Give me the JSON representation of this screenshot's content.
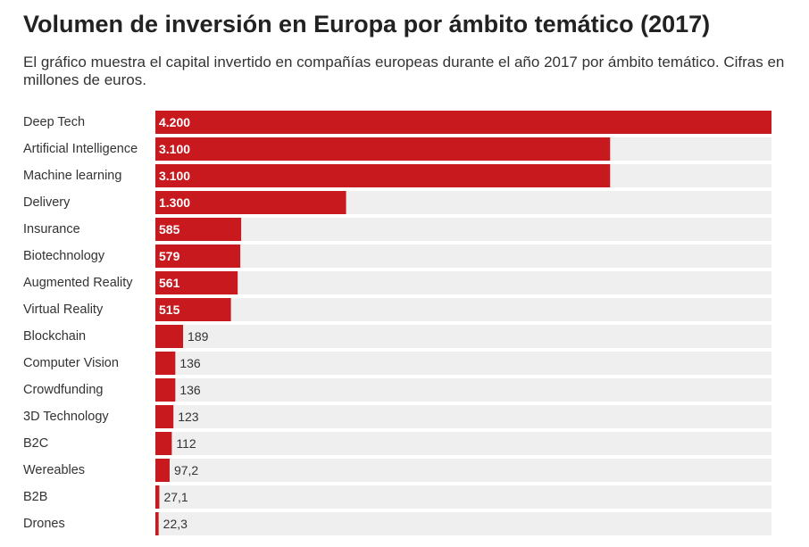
{
  "chart_data": {
    "type": "bar",
    "orientation": "horizontal",
    "title": "Volumen de inversión en Europa por ámbito temático (2017)",
    "subtitle": "El gráfico muestra el capital invertido en compañías europeas durante el año 2017 por ámbito temático. Cifras en millones de euros.",
    "xlim": [
      0,
      4200
    ],
    "bar_color": "#c8191e",
    "track_color": "#efefef",
    "categories": [
      "Deep Tech",
      "Artificial Intelligence",
      "Machine learning",
      "Delivery",
      "Insurance",
      "Biotechnology",
      "Augmented Reality",
      "Virtual Reality",
      "Blockchain",
      "Computer Vision",
      "Crowdfunding",
      "3D Technology",
      "B2C",
      "Wereables",
      "B2B",
      "Drones"
    ],
    "values": [
      4200,
      3100,
      3100,
      1300,
      585,
      579,
      561,
      515,
      189,
      136,
      136,
      123,
      112,
      97.2,
      27.1,
      22.3
    ],
    "value_labels": [
      "4.200",
      "3.100",
      "3.100",
      "1.300",
      "585",
      "579",
      "561",
      "515",
      "189",
      "136",
      "136",
      "123",
      "112",
      "97,2",
      "27,1",
      "22,3"
    ]
  }
}
